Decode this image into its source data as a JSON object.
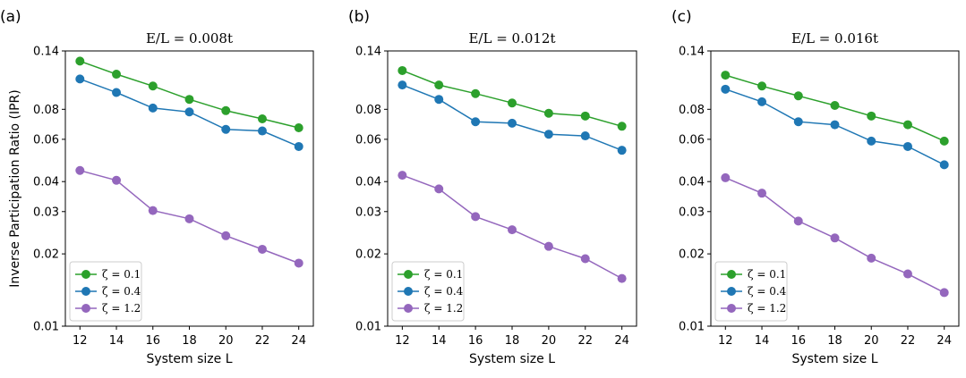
{
  "chart_data": [
    {
      "type": "line",
      "panel_label": "(a)",
      "title": "E/L = 0.008t",
      "xlabel": "System size L",
      "ylabel": "Inverse Participation Ratio (IPR)",
      "yscale": "log",
      "xlim": [
        11.2,
        24.8
      ],
      "ylim": [
        0.01,
        0.14
      ],
      "xticks": [
        12,
        14,
        16,
        18,
        20,
        22,
        24
      ],
      "yticks": [
        0.01,
        0.02,
        0.03,
        0.04,
        0.06,
        0.08,
        0.14
      ],
      "ytick_labels": [
        "0.01",
        "0.02",
        "0.03",
        "0.04",
        "0.06",
        "0.08",
        "0.14"
      ],
      "legend_position": "lower-left",
      "x": [
        12,
        14,
        16,
        18,
        20,
        22,
        24
      ],
      "series": [
        {
          "name": "ζ = 0.1",
          "color": "#2ca02c",
          "values": [
            0.127,
            0.112,
            0.1,
            0.088,
            0.079,
            0.073,
            0.067
          ]
        },
        {
          "name": "ζ = 0.4",
          "color": "#1f77b4",
          "values": [
            0.107,
            0.094,
            0.081,
            0.078,
            0.066,
            0.065,
            0.056
          ]
        },
        {
          "name": "ζ = 1.2",
          "color": "#9467bd",
          "values": [
            0.0445,
            0.0405,
            0.0303,
            0.028,
            0.0238,
            0.0209,
            0.0183
          ]
        }
      ]
    },
    {
      "type": "line",
      "panel_label": "(b)",
      "title": "E/L = 0.012t",
      "xlabel": "System size L",
      "ylabel": "",
      "yscale": "log",
      "xlim": [
        11.2,
        24.8
      ],
      "ylim": [
        0.01,
        0.14
      ],
      "xticks": [
        12,
        14,
        16,
        18,
        20,
        22,
        24
      ],
      "yticks": [
        0.01,
        0.02,
        0.03,
        0.04,
        0.06,
        0.08,
        0.14
      ],
      "ytick_labels": [
        "0.01",
        "0.02",
        "0.03",
        "0.04",
        "0.06",
        "0.08",
        "0.14"
      ],
      "legend_position": "lower-left",
      "x": [
        12,
        14,
        16,
        18,
        20,
        22,
        24
      ],
      "series": [
        {
          "name": "ζ = 0.1",
          "color": "#2ca02c",
          "values": [
            0.116,
            0.101,
            0.093,
            0.085,
            0.077,
            0.075,
            0.068
          ]
        },
        {
          "name": "ζ = 0.4",
          "color": "#1f77b4",
          "values": [
            0.101,
            0.088,
            0.071,
            0.07,
            0.063,
            0.062,
            0.054
          ]
        },
        {
          "name": "ζ = 1.2",
          "color": "#9467bd",
          "values": [
            0.0425,
            0.0373,
            0.0286,
            0.0252,
            0.0215,
            0.0191,
            0.0158
          ]
        }
      ]
    },
    {
      "type": "line",
      "panel_label": "(c)",
      "title": "E/L = 0.016t",
      "xlabel": "System size L",
      "ylabel": "",
      "yscale": "log",
      "xlim": [
        11.2,
        24.8
      ],
      "ylim": [
        0.01,
        0.14
      ],
      "xticks": [
        12,
        14,
        16,
        18,
        20,
        22,
        24
      ],
      "yticks": [
        0.01,
        0.02,
        0.03,
        0.04,
        0.06,
        0.08,
        0.14
      ],
      "ytick_labels": [
        "0.01",
        "0.02",
        "0.03",
        "0.04",
        "0.06",
        "0.08",
        "0.14"
      ],
      "legend_position": "lower-left",
      "x": [
        12,
        14,
        16,
        18,
        20,
        22,
        24
      ],
      "series": [
        {
          "name": "ζ = 0.1",
          "color": "#2ca02c",
          "values": [
            0.111,
            0.1,
            0.091,
            0.083,
            0.075,
            0.069,
            0.059
          ]
        },
        {
          "name": "ζ = 0.4",
          "color": "#1f77b4",
          "values": [
            0.097,
            0.086,
            0.071,
            0.069,
            0.059,
            0.056,
            0.047
          ]
        },
        {
          "name": "ζ = 1.2",
          "color": "#9467bd",
          "values": [
            0.0415,
            0.0358,
            0.0274,
            0.0233,
            0.0192,
            0.0165,
            0.0138
          ]
        }
      ]
    }
  ]
}
